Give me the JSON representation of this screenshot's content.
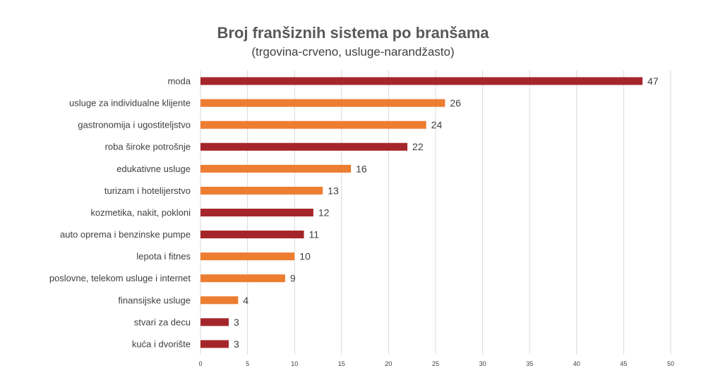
{
  "chart_data": {
    "type": "bar",
    "orientation": "horizontal",
    "title": "Broj franšiznih sistema po branšama",
    "subtitle": "(trgovina-crveno, usluge-narandžasto)",
    "categories": [
      "moda",
      "usluge za individualne klijente",
      "gastronomija i ugostiteljstvo ",
      "roba široke potrošnje",
      "edukativne usluge",
      "turizam i hotelijerstvo",
      "kozmetika, nakit, pokloni",
      "auto oprema i benzinske pumpe",
      "lepota i fitnes ",
      "poslovne, telekom usluge i internet",
      "finansijske usluge",
      "stvari za decu",
      "kuća i dvorište"
    ],
    "values": [
      47,
      26,
      24,
      22,
      16,
      13,
      12,
      11,
      10,
      9,
      4,
      3,
      3
    ],
    "groups": [
      "trgovina",
      "usluge",
      "usluge",
      "trgovina",
      "usluge",
      "usluge",
      "trgovina",
      "trgovina",
      "usluge",
      "usluge",
      "usluge",
      "trgovina",
      "trgovina"
    ],
    "colors": {
      "trgovina": "#a5262a",
      "usluge": "#ed7d31"
    },
    "xlim": [
      0,
      50
    ],
    "xticks": [
      "0",
      "5",
      "10",
      "15",
      "20",
      "25",
      "30",
      "35",
      "40",
      "45",
      "50"
    ],
    "grid": true,
    "legend": "none"
  }
}
